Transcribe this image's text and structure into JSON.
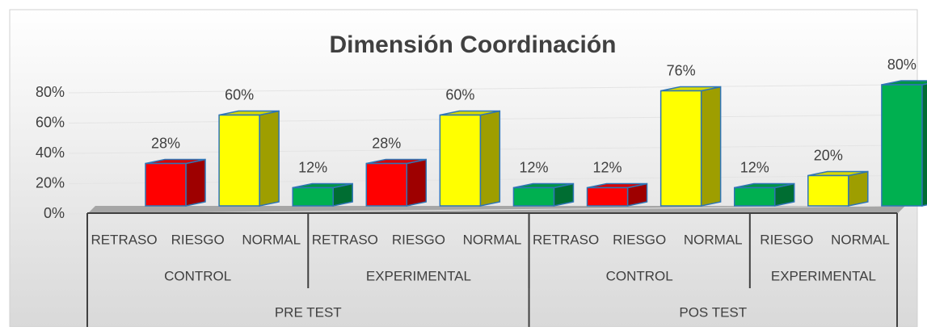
{
  "chart_data": {
    "type": "bar3d",
    "title": "Dimensión Coordinación",
    "categories": [
      [
        "PRE TEST",
        "CONTROL",
        "RETRASO"
      ],
      [
        "PRE TEST",
        "CONTROL",
        "RIESGO"
      ],
      [
        "PRE TEST",
        "CONTROL",
        "NORMAL"
      ],
      [
        "PRE TEST",
        "EXPERIMENTAL",
        "RETRASO"
      ],
      [
        "PRE TEST",
        "EXPERIMENTAL",
        "RIESGO"
      ],
      [
        "PRE TEST",
        "EXPERIMENTAL",
        "NORMAL"
      ],
      [
        "POS TEST",
        "CONTROL",
        "RETRASO"
      ],
      [
        "POS TEST",
        "CONTROL",
        "RIESGO"
      ],
      [
        "POS TEST",
        "CONTROL",
        "NORMAL"
      ],
      [
        "POS TEST",
        "EXPERIMENTAL",
        "RIESGO"
      ],
      [
        "POS TEST",
        "EXPERIMENTAL",
        "NORMAL"
      ]
    ],
    "values": [
      28,
      60,
      12,
      28,
      60,
      12,
      12,
      76,
      12,
      20,
      80
    ],
    "value_labels": [
      "28%",
      "60%",
      "12%",
      "28%",
      "60%",
      "12%",
      "12%",
      "76%",
      "12%",
      "20%",
      "80%"
    ],
    "colors": [
      "#ff0000",
      "#ffff00",
      "#00b050",
      "#ff0000",
      "#ffff00",
      "#00b050",
      "#ff0000",
      "#ffff00",
      "#00b050",
      "#ffff00",
      "#00b050"
    ],
    "ylim": [
      0,
      80
    ],
    "yticks": [
      {
        "value": 0,
        "label": "0%"
      },
      {
        "value": 20,
        "label": "20%"
      },
      {
        "value": 40,
        "label": "40%"
      },
      {
        "value": 60,
        "label": "60%"
      },
      {
        "value": 80,
        "label": "80%"
      }
    ],
    "grid": true
  }
}
